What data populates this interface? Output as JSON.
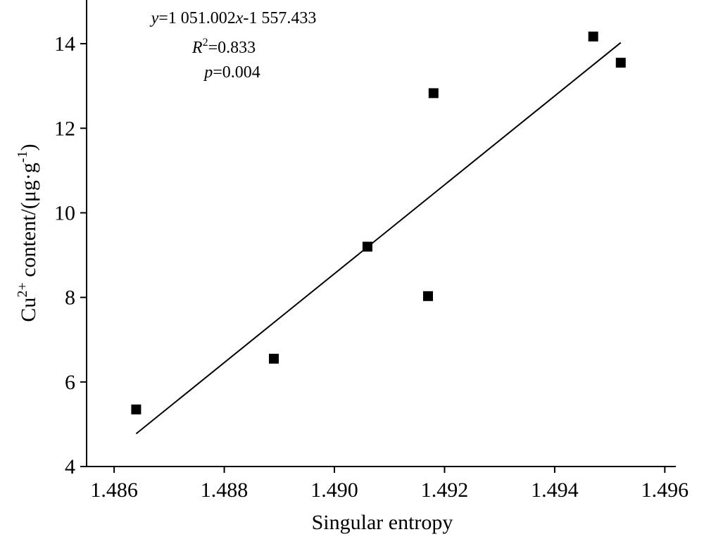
{
  "chart_data": {
    "type": "scatter",
    "xlabel": "Singular entropy",
    "ylabel_parts": {
      "prefix": "Cu",
      "sup": "2+",
      "middle": " content/(μg·g",
      "sup2": "-1",
      "suffix": ")"
    },
    "xlim": [
      1.4855,
      1.4962
    ],
    "ylim": [
      4,
      15
    ],
    "x_ticks": [
      1.486,
      1.488,
      1.49,
      1.492,
      1.494,
      1.496
    ],
    "x_tick_labels": [
      "1.486",
      "1.488",
      "1.490",
      "1.492",
      "1.494",
      "1.496"
    ],
    "y_ticks": [
      4,
      6,
      8,
      10,
      12,
      14
    ],
    "y_tick_labels": [
      "4",
      "6",
      "8",
      "10",
      "12",
      "14"
    ],
    "points": [
      {
        "x": 1.4864,
        "y": 5.35
      },
      {
        "x": 1.4889,
        "y": 6.55
      },
      {
        "x": 1.4906,
        "y": 9.2
      },
      {
        "x": 1.4917,
        "y": 8.03
      },
      {
        "x": 1.4918,
        "y": 12.83
      },
      {
        "x": 1.4947,
        "y": 14.17
      },
      {
        "x": 1.4952,
        "y": 13.55
      }
    ],
    "fit_line": {
      "x_start": 1.4864,
      "x_end": 1.4952,
      "slope": 1051.002,
      "intercept": -1557.433
    },
    "annotation": {
      "equation": {
        "v1": "y",
        "v2": "=1 051.002",
        "v3": "x",
        "v4": "-1 557.433"
      },
      "r2": {
        "v1": "R",
        "v2": "2",
        "v3": "=0.833"
      },
      "p": {
        "v1": "p",
        "v2": "=0.004"
      }
    },
    "grid": false,
    "legend": "none"
  }
}
